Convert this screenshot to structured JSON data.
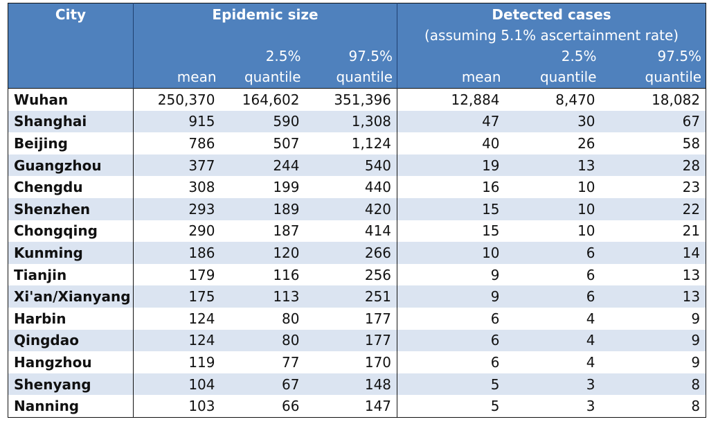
{
  "header": {
    "city_label": "City",
    "group1_title": "Epidemic size",
    "group2_title": "Detected cases",
    "group2_subtitle": "(assuming 5.1% ascertainment rate)",
    "q_low_pct": "2.5%",
    "q_high_pct": "97.5%",
    "mean_label": "mean",
    "quantile_label": "quantile"
  },
  "rows": [
    {
      "city": "Wuhan",
      "size_mean": "250,370",
      "size_q025": "164,602",
      "size_q975": "351,396",
      "det_mean": "12,884",
      "det_q025": "8,470",
      "det_q975": "18,082"
    },
    {
      "city": "Shanghai",
      "size_mean": "915",
      "size_q025": "590",
      "size_q975": "1,308",
      "det_mean": "47",
      "det_q025": "30",
      "det_q975": "67"
    },
    {
      "city": "Beijing",
      "size_mean": "786",
      "size_q025": "507",
      "size_q975": "1,124",
      "det_mean": "40",
      "det_q025": "26",
      "det_q975": "58"
    },
    {
      "city": "Guangzhou",
      "size_mean": "377",
      "size_q025": "244",
      "size_q975": "540",
      "det_mean": "19",
      "det_q025": "13",
      "det_q975": "28"
    },
    {
      "city": "Chengdu",
      "size_mean": "308",
      "size_q025": "199",
      "size_q975": "440",
      "det_mean": "16",
      "det_q025": "10",
      "det_q975": "23"
    },
    {
      "city": "Shenzhen",
      "size_mean": "293",
      "size_q025": "189",
      "size_q975": "420",
      "det_mean": "15",
      "det_q025": "10",
      "det_q975": "22"
    },
    {
      "city": "Chongqing",
      "size_mean": "290",
      "size_q025": "187",
      "size_q975": "414",
      "det_mean": "15",
      "det_q025": "10",
      "det_q975": "21"
    },
    {
      "city": "Kunming",
      "size_mean": "186",
      "size_q025": "120",
      "size_q975": "266",
      "det_mean": "10",
      "det_q025": "6",
      "det_q975": "14"
    },
    {
      "city": "Tianjin",
      "size_mean": "179",
      "size_q025": "116",
      "size_q975": "256",
      "det_mean": "9",
      "det_q025": "6",
      "det_q975": "13"
    },
    {
      "city": "Xi'an/Xianyang",
      "size_mean": "175",
      "size_q025": "113",
      "size_q975": "251",
      "det_mean": "9",
      "det_q025": "6",
      "det_q975": "13"
    },
    {
      "city": "Harbin",
      "size_mean": "124",
      "size_q025": "80",
      "size_q975": "177",
      "det_mean": "6",
      "det_q025": "4",
      "det_q975": "9"
    },
    {
      "city": "Qingdao",
      "size_mean": "124",
      "size_q025": "80",
      "size_q975": "177",
      "det_mean": "6",
      "det_q025": "4",
      "det_q975": "9"
    },
    {
      "city": "Hangzhou",
      "size_mean": "119",
      "size_q025": "77",
      "size_q975": "170",
      "det_mean": "6",
      "det_q025": "4",
      "det_q975": "9"
    },
    {
      "city": "Shenyang",
      "size_mean": "104",
      "size_q025": "67",
      "size_q975": "148",
      "det_mean": "5",
      "det_q025": "3",
      "det_q975": "8"
    },
    {
      "city": "Nanning",
      "size_mean": "103",
      "size_q025": "66",
      "size_q975": "147",
      "det_mean": "5",
      "det_q025": "3",
      "det_q975": "8"
    }
  ],
  "colors": {
    "header_bg": "#4f81bd",
    "header_text": "#ffffff",
    "stripe_bg": "#dbe4f1"
  }
}
